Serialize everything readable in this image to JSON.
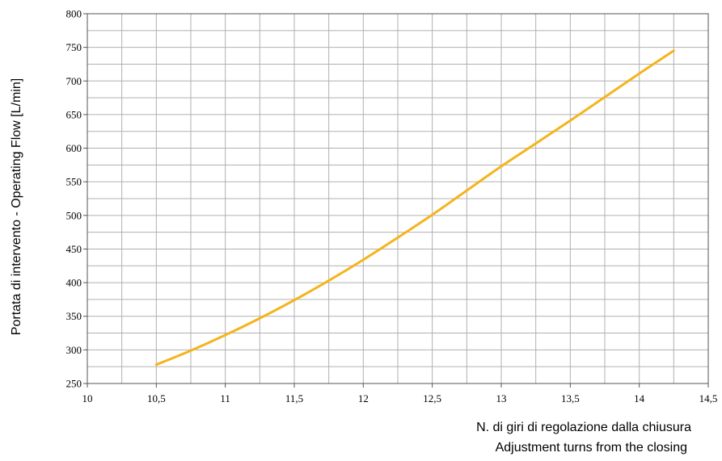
{
  "chart_data": {
    "type": "line",
    "title": "",
    "xlabel_lines": [
      "N. di giri di regolazione dalla chiusura",
      "Adjustment turns from the closing"
    ],
    "ylabel": "Portata di intervento - Operating Flow [L/min]",
    "xlim": [
      10,
      14.5
    ],
    "ylim": [
      250,
      800
    ],
    "x_ticks": [
      10,
      10.5,
      11,
      11.5,
      12,
      12.5,
      13,
      13.5,
      14,
      14.5
    ],
    "x_tick_labels": [
      "10",
      "10,5",
      "11",
      "11,5",
      "12",
      "12,5",
      "13",
      "13,5",
      "14",
      "14,5"
    ],
    "y_ticks": [
      250,
      300,
      350,
      400,
      450,
      500,
      550,
      600,
      650,
      700,
      750,
      800
    ],
    "y_tick_labels": [
      "250",
      "300",
      "350",
      "400",
      "450",
      "500",
      "550",
      "600",
      "650",
      "700",
      "750",
      "800"
    ],
    "x_minor_step": 0.25,
    "y_minor_step": 25,
    "grid": true,
    "legend": "none",
    "series": [
      {
        "color": "#f5b41c",
        "x": [
          10.5,
          10.75,
          11,
          11.25,
          11.5,
          11.75,
          12,
          12.25,
          12.5,
          12.75,
          13,
          13.25,
          13.5,
          13.75,
          14,
          14.25
        ],
        "y": [
          278,
          299,
          322,
          347,
          374,
          403,
          434,
          467,
          501,
          537,
          573,
          607,
          641,
          676,
          711,
          745
        ]
      }
    ]
  }
}
